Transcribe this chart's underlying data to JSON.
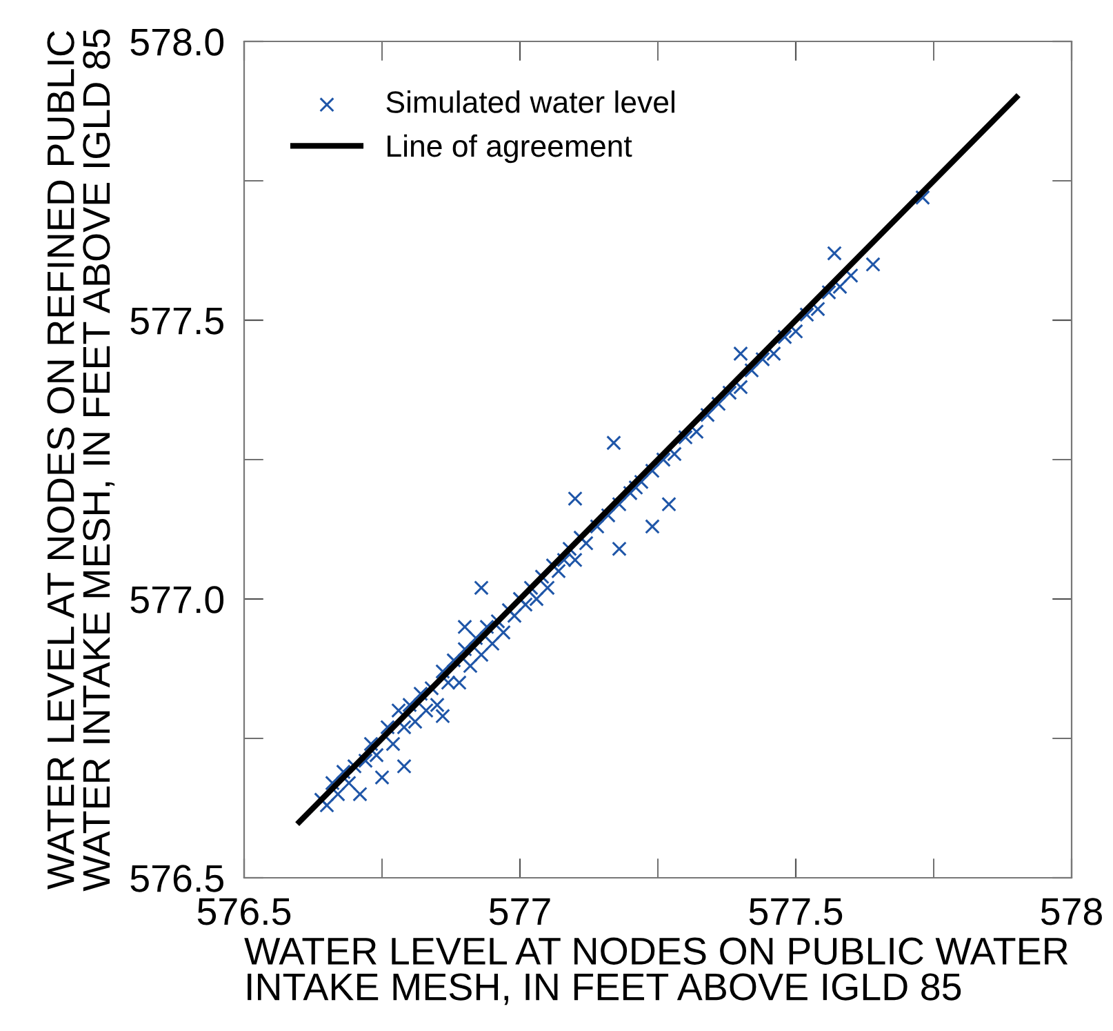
{
  "chart_data": {
    "type": "scatter",
    "xlabel": "WATER LEVEL AT NODES ON PUBLIC WATER\nINTAKE MESH, IN FEET ABOVE IGLD 85",
    "ylabel": "WATER LEVEL AT NODES ON REFINED PUBLIC\nWATER INTAKE MESH, IN FEET ABOVE IGLD 85",
    "xlim": [
      576.5,
      578
    ],
    "ylim": [
      576.5,
      578
    ],
    "xticks": [
      576.5,
      {
        "value": 576.75,
        "label": null
      },
      577,
      {
        "value": 577.25,
        "label": null
      },
      577.5,
      {
        "value": 577.75,
        "label": null
      },
      578
    ],
    "yticks": [
      {
        "value": 576.5,
        "label": "576.5"
      },
      {
        "value": 576.75,
        "label": null
      },
      {
        "value": 577,
        "label": "577.0"
      },
      {
        "value": 577.25,
        "label": null
      },
      {
        "value": 577.5,
        "label": "577.5"
      },
      {
        "value": 577.75,
        "label": null
      },
      {
        "value": 578,
        "label": "578.0"
      }
    ],
    "grid": false,
    "legend": "top left",
    "series": [
      {
        "name": "Simulated water level",
        "marker": "cross",
        "color": "#1f56a8",
        "x": [
          576.64,
          576.65,
          576.66,
          576.67,
          576.68,
          576.69,
          576.7,
          576.71,
          576.72,
          576.73,
          576.74,
          576.75,
          576.76,
          576.77,
          576.78,
          576.79,
          576.8,
          576.81,
          576.82,
          576.83,
          576.84,
          576.85,
          576.86,
          576.87,
          576.88,
          576.89,
          576.9,
          576.91,
          576.92,
          576.93,
          576.94,
          576.95,
          576.96,
          576.97,
          576.98,
          576.99,
          577.0,
          577.01,
          577.02,
          577.03,
          577.04,
          577.05,
          577.06,
          577.07,
          577.08,
          577.09,
          577.1,
          577.11,
          577.12,
          577.14,
          577.16,
          577.18,
          577.2,
          577.22,
          577.24,
          577.26,
          577.28,
          577.3,
          577.32,
          577.34,
          577.36,
          577.38,
          577.4,
          577.42,
          577.44,
          577.46,
          577.48,
          577.5,
          577.52,
          577.54,
          577.56,
          577.58,
          577.6,
          576.93,
          576.9,
          577.17,
          577.21,
          577.18,
          577.27,
          577.1,
          577.24,
          577.57,
          577.64,
          577.4,
          577.73,
          576.86,
          576.79
        ],
        "values": [
          576.64,
          576.63,
          576.67,
          576.65,
          576.69,
          576.67,
          576.7,
          576.65,
          576.71,
          576.74,
          576.72,
          576.68,
          576.77,
          576.74,
          576.8,
          576.77,
          576.81,
          576.78,
          576.83,
          576.8,
          576.84,
          576.81,
          576.87,
          576.85,
          576.89,
          576.85,
          576.91,
          576.88,
          576.93,
          576.9,
          576.95,
          576.92,
          576.96,
          576.94,
          576.98,
          576.97,
          577.0,
          576.99,
          577.02,
          577.0,
          577.04,
          577.02,
          577.06,
          577.05,
          577.07,
          577.09,
          577.07,
          577.11,
          577.1,
          577.13,
          577.15,
          577.17,
          577.19,
          577.21,
          577.23,
          577.25,
          577.26,
          577.29,
          577.3,
          577.33,
          577.35,
          577.37,
          577.38,
          577.41,
          577.43,
          577.44,
          577.47,
          577.48,
          577.51,
          577.52,
          577.55,
          577.56,
          577.58,
          577.02,
          576.95,
          577.28,
          577.2,
          577.09,
          577.17,
          577.18,
          577.13,
          577.62,
          577.6,
          577.44,
          577.72,
          576.79,
          576.7
        ]
      },
      {
        "name": "Line of agreement",
        "type": "line",
        "marker": "none",
        "line_style": "solid",
        "color": "#000000",
        "x": [
          576.6,
          577.9
        ],
        "values": [
          576.6,
          577.9
        ]
      }
    ]
  }
}
